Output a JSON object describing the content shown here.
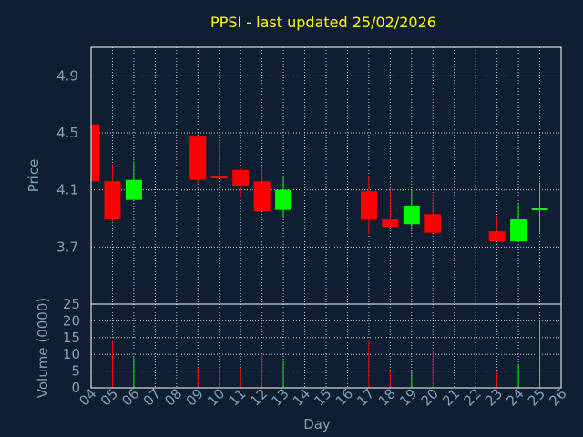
{
  "chart_data": {
    "type": "candlestick",
    "title": "PPSI - last updated 25/02/2026",
    "xlabel": "Day",
    "ylabel_price": "Price",
    "ylabel_volume": "Volume (0000)",
    "days": [
      "04",
      "05",
      "06",
      "07",
      "08",
      "09",
      "10",
      "11",
      "12",
      "13",
      "14",
      "15",
      "16",
      "17",
      "18",
      "19",
      "20",
      "21",
      "22",
      "23",
      "24",
      "25",
      "26"
    ],
    "price_ticks": [
      "3.7",
      "4.1",
      "4.5",
      "4.9"
    ],
    "volume_ticks": [
      "0",
      "5",
      "10",
      "15",
      "20",
      "25"
    ],
    "price_range": [
      3.3,
      5.1
    ],
    "volume_range": [
      0,
      25
    ],
    "candles": [
      {
        "day": "04",
        "open": 4.56,
        "high": 4.56,
        "low": 4.16,
        "close": 4.16
      },
      {
        "day": "05",
        "open": 4.16,
        "high": 4.28,
        "low": 3.88,
        "close": 3.9
      },
      {
        "day": "06",
        "open": 4.03,
        "high": 4.3,
        "low": 4.03,
        "close": 4.17
      },
      {
        "day": "09",
        "open": 4.48,
        "high": 4.48,
        "low": 4.14,
        "close": 4.17
      },
      {
        "day": "10",
        "open": 4.2,
        "high": 4.44,
        "low": 4.18,
        "close": 4.18
      },
      {
        "day": "11",
        "open": 4.24,
        "high": 4.26,
        "low": 4.05,
        "close": 4.13
      },
      {
        "day": "12",
        "open": 4.16,
        "high": 4.27,
        "low": 3.95,
        "close": 3.95
      },
      {
        "day": "13",
        "open": 3.96,
        "high": 4.2,
        "low": 3.91,
        "close": 4.1
      },
      {
        "day": "17",
        "open": 4.09,
        "high": 4.2,
        "low": 3.79,
        "close": 3.89
      },
      {
        "day": "18",
        "open": 3.9,
        "high": 4.1,
        "low": 3.84,
        "close": 3.84
      },
      {
        "day": "19",
        "open": 3.86,
        "high": 4.1,
        "low": 3.82,
        "close": 3.99
      },
      {
        "day": "20",
        "open": 3.93,
        "high": 4.07,
        "low": 3.8,
        "close": 3.8
      },
      {
        "day": "23",
        "open": 3.81,
        "high": 3.92,
        "low": 3.74,
        "close": 3.74
      },
      {
        "day": "24",
        "open": 3.74,
        "high": 4.0,
        "low": 3.74,
        "close": 3.9
      },
      {
        "day": "25",
        "open": 3.96,
        "high": 4.15,
        "low": 3.8,
        "close": 3.97
      }
    ],
    "volumes": [
      {
        "day": "05",
        "value": 14,
        "color": "red"
      },
      {
        "day": "06",
        "value": 9,
        "color": "green"
      },
      {
        "day": "09",
        "value": 6,
        "color": "red"
      },
      {
        "day": "10",
        "value": 6,
        "color": "red"
      },
      {
        "day": "11",
        "value": 6,
        "color": "red"
      },
      {
        "day": "12",
        "value": 10,
        "color": "red"
      },
      {
        "day": "13",
        "value": 8,
        "color": "green"
      },
      {
        "day": "17",
        "value": 14,
        "color": "red"
      },
      {
        "day": "18",
        "value": 5,
        "color": "red"
      },
      {
        "day": "19",
        "value": 5,
        "color": "green"
      },
      {
        "day": "20",
        "value": 11,
        "color": "red"
      },
      {
        "day": "23",
        "value": 5,
        "color": "red"
      },
      {
        "day": "24",
        "value": 7,
        "color": "green"
      },
      {
        "day": "25",
        "value": 20,
        "color": "green"
      }
    ],
    "colors": {
      "background": "#0f1e30",
      "up": "#00ff00",
      "down": "#ff0000",
      "title": "#ffff00",
      "axis_text": "#7f9fbf",
      "frame": "#ffffff"
    },
    "grid": true
  }
}
